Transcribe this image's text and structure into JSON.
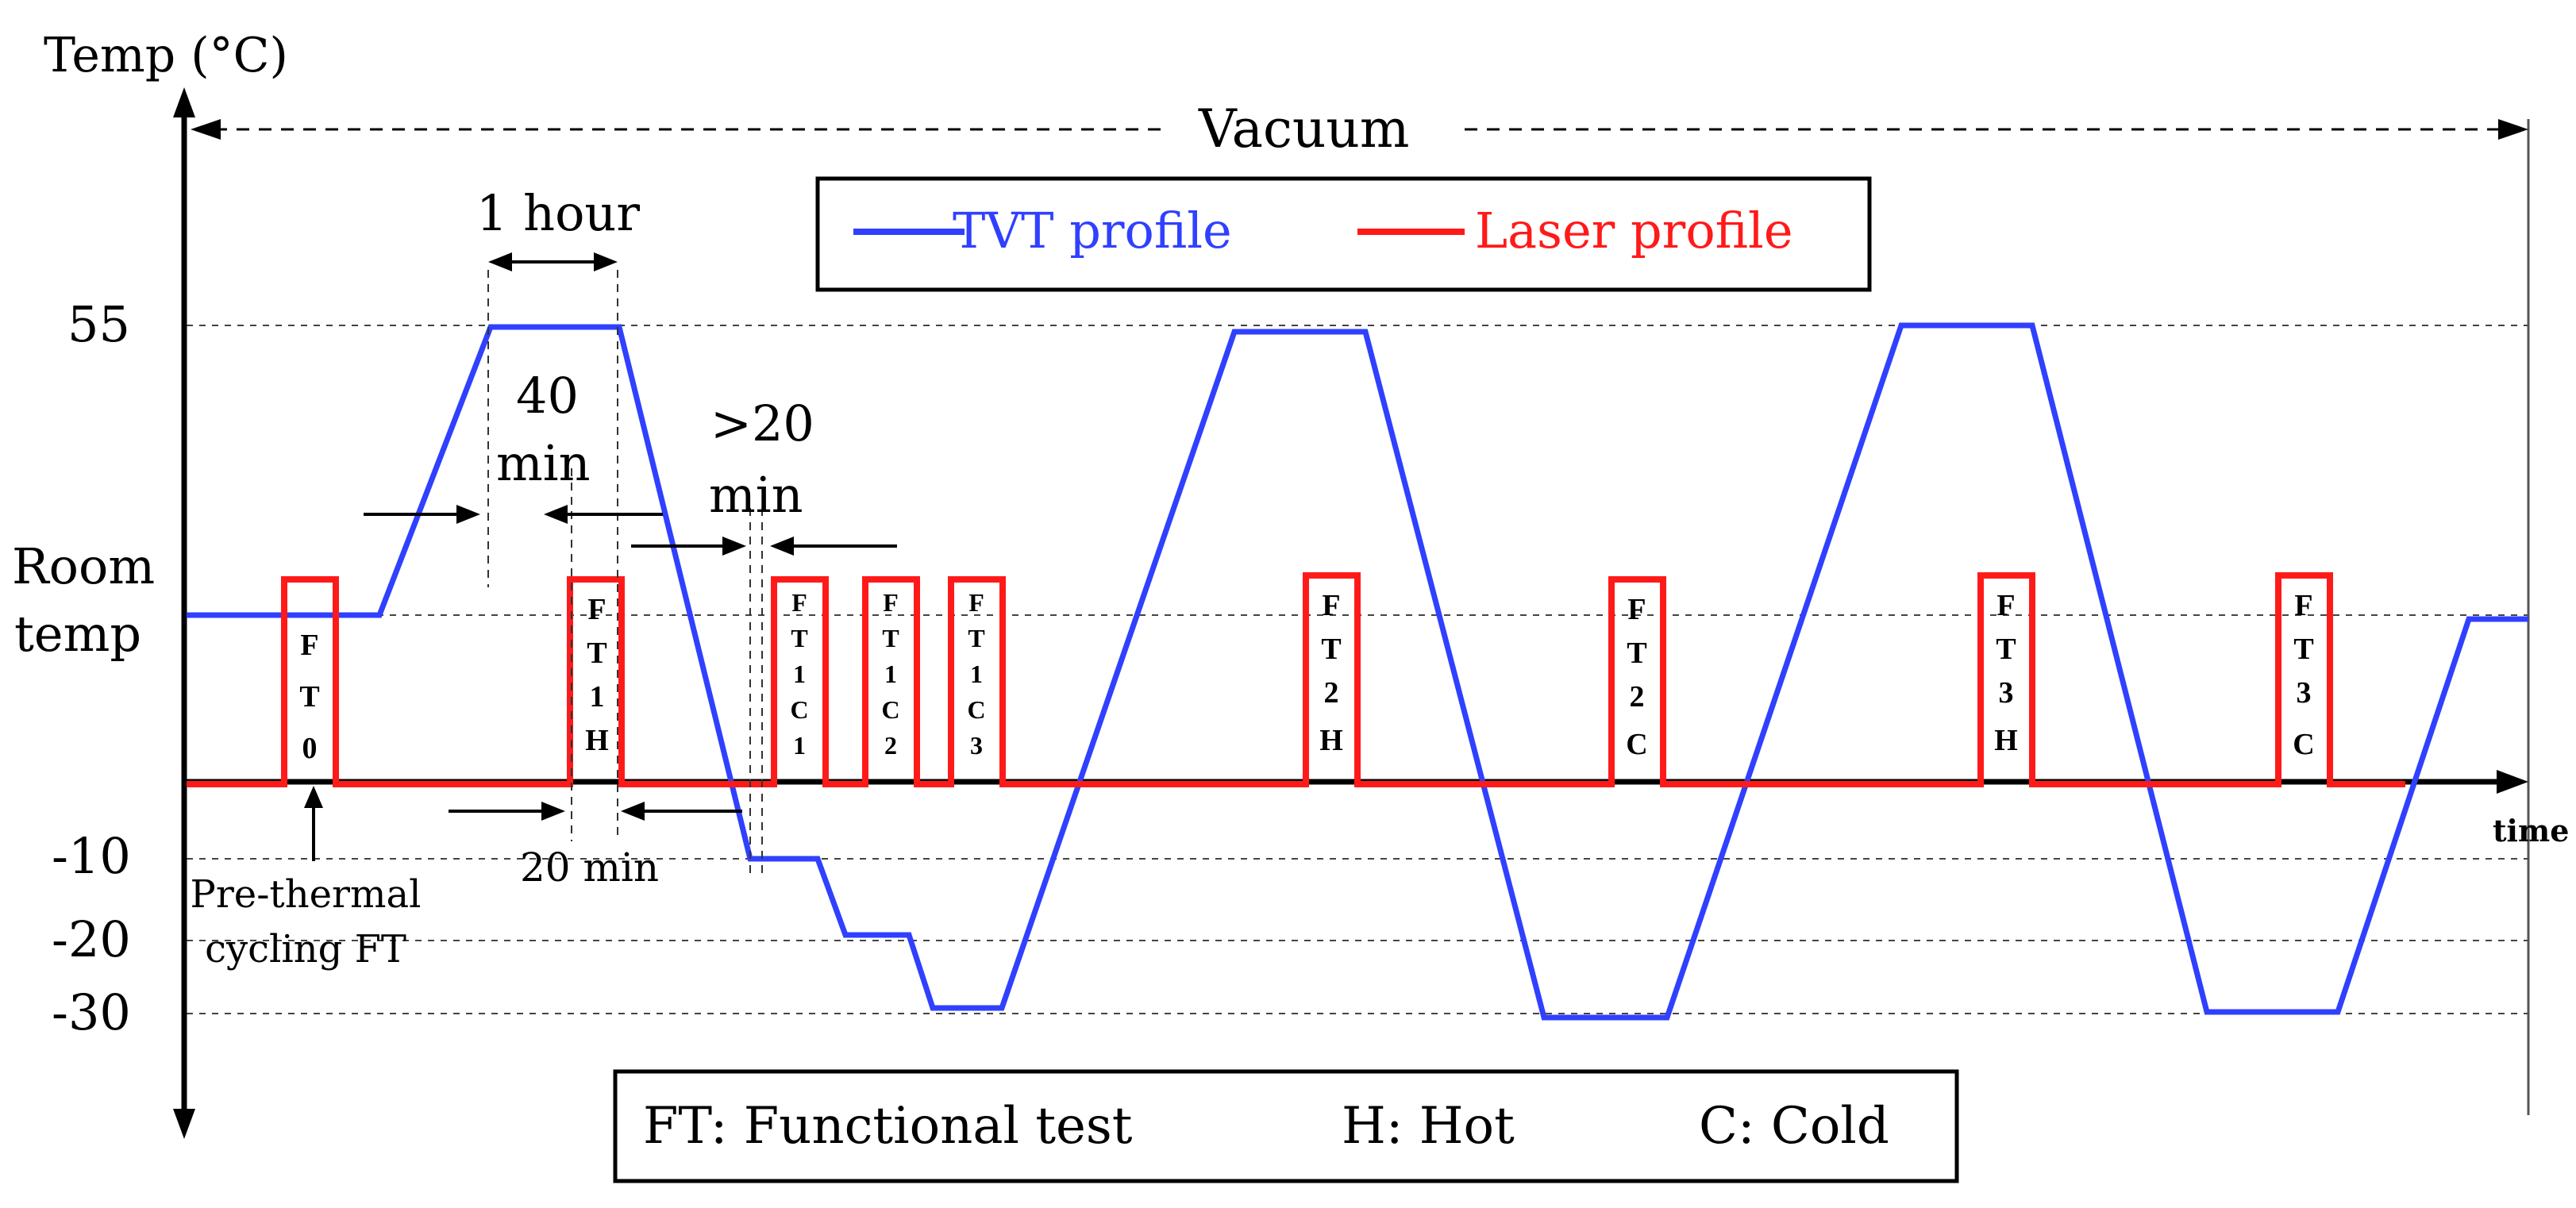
{
  "axes": {
    "y_label": "Temp (°C)",
    "x_label": "time",
    "ticks": [
      "55",
      "Room",
      "temp",
      "-10",
      "-20",
      "-30"
    ]
  },
  "annotations": {
    "vacuum": "Vacuum",
    "one_hour": "1 hour",
    "forty": "40",
    "forty_min": "min",
    "gt20": ">20",
    "gt20_min": "min",
    "twenty_min": "20 min",
    "pre_line1": "Pre-thermal",
    "pre_line2": "cycling FT"
  },
  "legend": {
    "tvt": "TVT profile",
    "laser": "Laser profile",
    "tvt_color": "#3040ff",
    "laser_color": "#ff1a1a"
  },
  "ft_boxes": [
    {
      "label": "FT0"
    },
    {
      "label": "FT1H"
    },
    {
      "label": "FT1C1"
    },
    {
      "label": "FT1C2"
    },
    {
      "label": "FT1C3"
    },
    {
      "label": "FT2H"
    },
    {
      "label": "FT2C"
    },
    {
      "label": "FT3H"
    },
    {
      "label": "FT3C"
    }
  ],
  "key": {
    "ft": "FT: Functional test",
    "h": "H: Hot",
    "c": "C: Cold"
  }
}
